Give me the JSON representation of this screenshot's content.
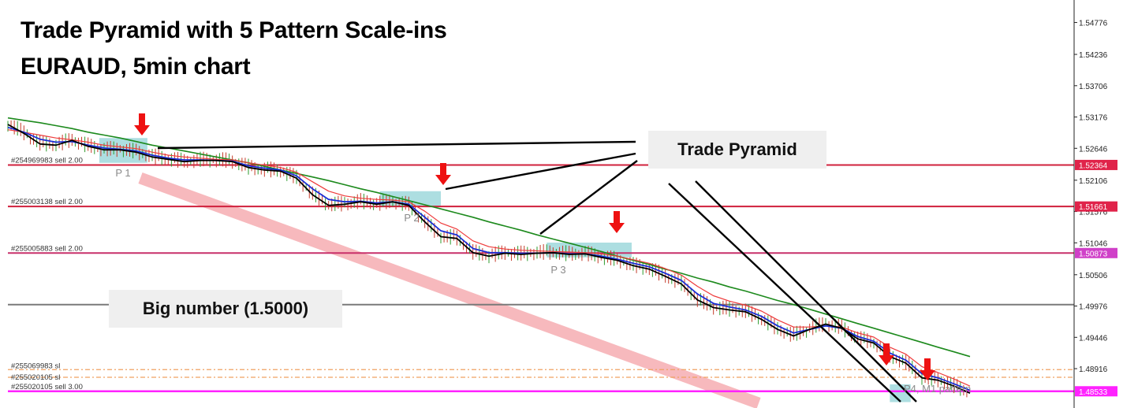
{
  "header": {
    "title_line1": "Trade Pyramid with 5 Pattern Scale-ins",
    "title_line2": "EURAUD, 5min chart"
  },
  "callouts": {
    "trade_pyramid": "Trade Pyramid",
    "big_number": "Big number (1.5000)"
  },
  "chart_data": {
    "type": "line",
    "title": "Trade Pyramid with 5 Pattern Scale-ins",
    "subtitle": "EURAUD, 5min chart",
    "symbol": "EURAUD",
    "timeframe": "5min",
    "ylim": [
      1.4825,
      1.5505
    ],
    "y_ticks": [
      "1.54776",
      "1.54236",
      "1.53706",
      "1.53176",
      "1.52646",
      "1.52106",
      "1.51576",
      "1.51046",
      "1.50506",
      "1.49976",
      "1.49446",
      "1.48916"
    ],
    "price_flags": [
      {
        "label": "1.52364",
        "value": 1.52364,
        "color": "#e0234a"
      },
      {
        "label": "1.51661",
        "value": 1.51661,
        "color": "#e0234a"
      },
      {
        "label": "1.50873",
        "value": 1.50873,
        "color": "#d040c8"
      },
      {
        "label": "1.48533",
        "value": 1.48533,
        "color": "#ff22ff"
      }
    ],
    "order_lines": [
      {
        "label": "#254969983 sell 2.00",
        "value": 1.52364,
        "color": "#d0203c"
      },
      {
        "label": "#255003138 sell 2.00",
        "value": 1.51661,
        "color": "#d0203c"
      },
      {
        "label": "#255005883 sell 2.00",
        "value": 1.50873,
        "color": "#c8306a"
      },
      {
        "label": "#255020105 sell 3.00",
        "value": 1.48533,
        "color": "#ff22ff"
      }
    ],
    "sl_labels": [
      "#255069983 sl",
      "#255020105 sl"
    ],
    "sl_levels": [
      1.489,
      1.4877
    ],
    "big_number_level": 1.5,
    "patterns": [
      {
        "label": "P 1"
      },
      {
        "label": "P 2"
      },
      {
        "label": "P 3"
      },
      {
        "label": "P4, M1 pattern"
      }
    ],
    "series": [
      {
        "name": "price",
        "color": "#000000",
        "values": [
          1.5305,
          1.529,
          1.5272,
          1.527,
          1.5278,
          1.5268,
          1.5262,
          1.5262,
          1.5258,
          1.525,
          1.5246,
          1.5242,
          1.5244,
          1.5244,
          1.5242,
          1.5232,
          1.5228,
          1.5226,
          1.5214,
          1.5186,
          1.5168,
          1.517,
          1.5174,
          1.517,
          1.5174,
          1.5168,
          1.514,
          1.5115,
          1.5112,
          1.5088,
          1.5082,
          1.5087,
          1.5085,
          1.5087,
          1.5088,
          1.5085,
          1.5086,
          1.508,
          1.5075,
          1.5066,
          1.506,
          1.5048,
          1.5035,
          1.5008,
          1.4995,
          1.4991,
          1.4988,
          1.4975,
          1.4958,
          1.4947,
          1.4958,
          1.4967,
          1.496,
          1.4942,
          1.4935,
          1.4912,
          1.4901,
          1.4876,
          1.4872,
          1.4862,
          1.485
        ]
      },
      {
        "name": "fast MA",
        "color": "#1a2fd6",
        "values": [
          1.53,
          1.5292,
          1.528,
          1.5275,
          1.5276,
          1.527,
          1.5265,
          1.5263,
          1.526,
          1.5253,
          1.5248,
          1.5245,
          1.5245,
          1.5244,
          1.5243,
          1.5235,
          1.5231,
          1.5228,
          1.5218,
          1.5196,
          1.5178,
          1.5174,
          1.5175,
          1.5172,
          1.5174,
          1.517,
          1.5148,
          1.5125,
          1.5118,
          1.5095,
          1.5088,
          1.5088,
          1.5087,
          1.5087,
          1.5088,
          1.5086,
          1.5086,
          1.5082,
          1.5077,
          1.507,
          1.5064,
          1.5053,
          1.5041,
          1.5018,
          1.5002,
          1.4996,
          1.4991,
          1.498,
          1.4964,
          1.4952,
          1.4958,
          1.4964,
          1.496,
          1.4946,
          1.4938,
          1.4918,
          1.4906,
          1.4883,
          1.4876,
          1.4866,
          1.4855
        ]
      },
      {
        "name": "slow MA",
        "color": "#ee3a3a",
        "values": [
          1.5296,
          1.5292,
          1.5287,
          1.5282,
          1.5279,
          1.5275,
          1.527,
          1.5267,
          1.5264,
          1.5258,
          1.5253,
          1.525,
          1.5248,
          1.5246,
          1.5245,
          1.524,
          1.5236,
          1.5232,
          1.5224,
          1.5208,
          1.5192,
          1.5184,
          1.518,
          1.5178,
          1.5177,
          1.5174,
          1.5158,
          1.5138,
          1.5128,
          1.5108,
          1.5098,
          1.5094,
          1.5092,
          1.5091,
          1.509,
          1.5089,
          1.5088,
          1.5086,
          1.5082,
          1.5076,
          1.507,
          1.5061,
          1.505,
          1.5031,
          1.5015,
          1.5006,
          1.4999,
          1.4989,
          1.4974,
          1.4962,
          1.4962,
          1.4964,
          1.4962,
          1.4952,
          1.4945,
          1.4928,
          1.4916,
          1.4895,
          1.4885,
          1.4874,
          1.4862
        ]
      },
      {
        "name": "long MA",
        "color": "#1d8a1d",
        "values": [
          1.5316,
          1.5312,
          1.5308,
          1.5303,
          1.5298,
          1.5292,
          1.5287,
          1.5282,
          1.5276,
          1.527,
          1.5265,
          1.526,
          1.5255,
          1.525,
          1.5245,
          1.524,
          1.5234,
          1.5228,
          1.5222,
          1.5216,
          1.521,
          1.5203,
          1.5196,
          1.519,
          1.5183,
          1.5176,
          1.5169,
          1.5162,
          1.5155,
          1.5148,
          1.514,
          1.5133,
          1.5126,
          1.5118,
          1.5111,
          1.5104,
          1.5097,
          1.509,
          1.5082,
          1.5075,
          1.5068,
          1.506,
          1.5053,
          1.5045,
          1.5038,
          1.503,
          1.5023,
          1.5015,
          1.5007,
          1.5,
          1.4992,
          1.4984,
          1.4976,
          1.4968,
          1.496,
          1.4952,
          1.4944,
          1.4936,
          1.4928,
          1.492,
          1.4912
        ]
      }
    ]
  }
}
